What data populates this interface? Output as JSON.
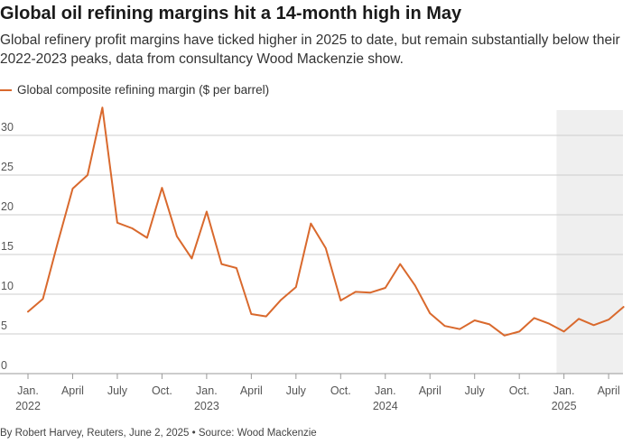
{
  "title": "Global oil refining margins hit a 14-month high in May",
  "subtitle": "Global refinery profit margins have ticked higher in 2025 to date, but remain substantially below their 2022-2023 peaks, data from consultancy Wood Mackenzie show.",
  "footer": "By Robert Harvey, Reuters, June 2, 2025 • Source: Wood Mackenzie",
  "colors": {
    "line": "#d9692d",
    "grid": "#cccccc",
    "shade": "#efefef",
    "text": "#555555"
  },
  "chart_data": {
    "type": "line",
    "title": "Global oil refining margins hit a 14-month high in May",
    "xlabel": "",
    "ylabel": "",
    "ylim": [
      0,
      35
    ],
    "yticks": [
      0,
      5,
      10,
      15,
      20,
      25,
      30
    ],
    "grid": true,
    "legend": "top-left",
    "shaded_range": {
      "from": "Jan. 2025",
      "to": "May 2025"
    },
    "x_tick_labels": [
      {
        "label": "Jan.",
        "year": "2022",
        "index": 0
      },
      {
        "label": "April",
        "year": "",
        "index": 3
      },
      {
        "label": "July",
        "year": "",
        "index": 6
      },
      {
        "label": "Oct.",
        "year": "",
        "index": 9
      },
      {
        "label": "Jan.",
        "year": "2023",
        "index": 12
      },
      {
        "label": "April",
        "year": "",
        "index": 15
      },
      {
        "label": "July",
        "year": "",
        "index": 18
      },
      {
        "label": "Oct.",
        "year": "",
        "index": 21
      },
      {
        "label": "Jan.",
        "year": "2024",
        "index": 24
      },
      {
        "label": "April",
        "year": "",
        "index": 27
      },
      {
        "label": "July",
        "year": "",
        "index": 30
      },
      {
        "label": "Oct.",
        "year": "",
        "index": 33
      },
      {
        "label": "Jan.",
        "year": "2025",
        "index": 36
      },
      {
        "label": "April",
        "year": "",
        "index": 39
      }
    ],
    "series": [
      {
        "name": "Global composite refining margin ($ per barrel)",
        "x": [
          "2022-01",
          "2022-02",
          "2022-03",
          "2022-04",
          "2022-05",
          "2022-06",
          "2022-07",
          "2022-08",
          "2022-09",
          "2022-10",
          "2022-11",
          "2022-12",
          "2023-01",
          "2023-02",
          "2023-03",
          "2023-04",
          "2023-05",
          "2023-06",
          "2023-07",
          "2023-08",
          "2023-09",
          "2023-10",
          "2023-11",
          "2023-12",
          "2024-01",
          "2024-02",
          "2024-03",
          "2024-04",
          "2024-05",
          "2024-06",
          "2024-07",
          "2024-08",
          "2024-09",
          "2024-10",
          "2024-11",
          "2024-12",
          "2025-01",
          "2025-02",
          "2025-03",
          "2025-04",
          "2025-05"
        ],
        "values": [
          7.8,
          9.4,
          16.5,
          23.3,
          25.0,
          33.5,
          19.0,
          18.3,
          17.1,
          23.4,
          17.3,
          14.5,
          20.4,
          13.8,
          13.3,
          7.5,
          7.2,
          9.3,
          10.9,
          18.9,
          15.8,
          9.2,
          10.3,
          10.2,
          10.8,
          13.8,
          11.1,
          7.6,
          6.0,
          5.6,
          6.7,
          6.2,
          4.8,
          5.3,
          7.0,
          6.3,
          5.3,
          6.9,
          6.1,
          6.8,
          8.4
        ]
      }
    ]
  }
}
